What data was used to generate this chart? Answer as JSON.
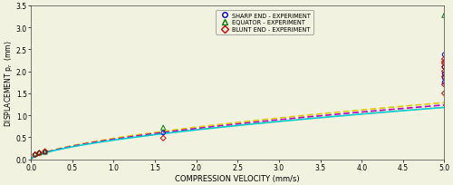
{
  "xlabel": "COMPRESSION VELOCITY (mm/s)",
  "ylabel": "DISPLACEMENT p_r  (mm)",
  "xlim": [
    0,
    5.0
  ],
  "ylim": [
    0,
    3.5
  ],
  "xticks": [
    0,
    0.5,
    1.0,
    1.5,
    2.0,
    2.5,
    3.0,
    3.5,
    4.0,
    4.5,
    5.0
  ],
  "yticks": [
    0,
    0.5,
    1.0,
    1.5,
    2.0,
    2.5,
    3.0,
    3.5
  ],
  "sharp_line_color": "#00CCCC",
  "equator_line_color": "#DDCC00",
  "blunt_line_color": "#BB00BB",
  "sharp_color": "#0000CC",
  "equator_color": "#007700",
  "blunt_color": "#CC0000",
  "sharp_exp_x": [
    0.05,
    0.1,
    0.17,
    1.6,
    5.0,
    5.0,
    5.0,
    5.0,
    5.0
  ],
  "sharp_exp_y": [
    0.1,
    0.14,
    0.16,
    0.6,
    1.75,
    1.85,
    1.95,
    2.1,
    2.38
  ],
  "equator_exp_x": [
    0.05,
    0.1,
    0.17,
    1.6,
    5.0
  ],
  "equator_exp_y": [
    0.12,
    0.15,
    0.17,
    0.72,
    3.28
  ],
  "blunt_exp_x": [
    0.05,
    0.1,
    0.17,
    1.6,
    5.0,
    5.0,
    5.0,
    5.0,
    5.0,
    5.0,
    5.0,
    5.0
  ],
  "blunt_exp_y": [
    0.1,
    0.14,
    0.18,
    0.48,
    1.5,
    1.7,
    1.88,
    2.0,
    2.1,
    2.18,
    2.22,
    2.28
  ],
  "legend_sharp": "SHARP END - EXPERIMENT",
  "legend_equator": "EQUATOR - EXPERIMENT",
  "legend_blunt": "BLUNT END - EXPERIMENT",
  "bg_color": "#F2F2E0",
  "sharp_a": 0.435,
  "sharp_b": 0.62,
  "equator_a": 0.475,
  "equator_b": 0.62,
  "blunt_a": 0.455,
  "blunt_b": 0.62
}
